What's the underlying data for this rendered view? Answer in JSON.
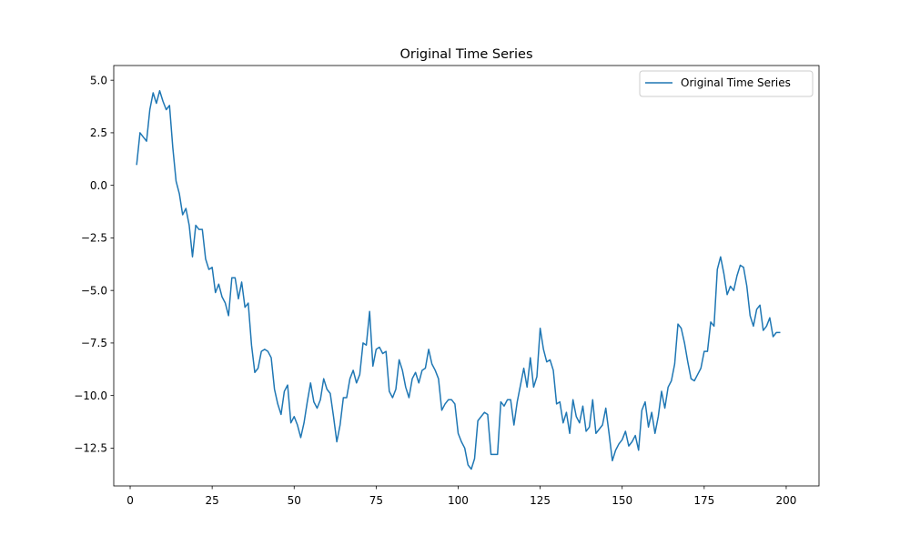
{
  "chart_data": {
    "type": "line",
    "title": "Original Time Series",
    "xlabel": "",
    "ylabel": "",
    "xlim": [
      -5,
      210
    ],
    "ylim": [
      -14.3,
      5.7
    ],
    "xticks": [
      0,
      25,
      50,
      75,
      100,
      125,
      150,
      175,
      200
    ],
    "yticks": [
      5.0,
      2.5,
      0.0,
      -2.5,
      -5.0,
      -7.5,
      -10.0,
      -12.5
    ],
    "xtick_labels": [
      "0",
      "25",
      "50",
      "75",
      "100",
      "125",
      "150",
      "175",
      "200"
    ],
    "ytick_labels": [
      "5.0",
      "2.5",
      "0.0",
      "−2.5",
      "−5.0",
      "−7.5",
      "−10.0",
      "−12.5"
    ],
    "grid": false,
    "legend_position": "upper right",
    "series": [
      {
        "name": "Original Time Series",
        "color": "#1f77b4",
        "x_start": 2,
        "x_step": 1,
        "values": [
          1.0,
          2.5,
          2.3,
          2.1,
          3.6,
          4.4,
          3.9,
          4.5,
          4.0,
          3.6,
          3.8,
          1.8,
          0.2,
          -0.4,
          -1.4,
          -1.1,
          -1.9,
          -3.4,
          -1.9,
          -2.1,
          -2.1,
          -3.5,
          -4.0,
          -3.9,
          -5.1,
          -4.7,
          -5.3,
          -5.6,
          -6.2,
          -4.4,
          -4.4,
          -5.4,
          -4.6,
          -5.8,
          -5.6,
          -7.6,
          -8.9,
          -8.7,
          -7.9,
          -7.8,
          -7.9,
          -8.2,
          -9.7,
          -10.4,
          -10.9,
          -9.8,
          -9.5,
          -11.3,
          -11.0,
          -11.4,
          -12.0,
          -11.3,
          -10.3,
          -9.4,
          -10.3,
          -10.6,
          -10.2,
          -9.2,
          -9.7,
          -9.9,
          -11.0,
          -12.2,
          -11.4,
          -10.1,
          -10.1,
          -9.2,
          -8.8,
          -9.4,
          -9.0,
          -7.5,
          -7.6,
          -6.0,
          -8.6,
          -7.8,
          -7.7,
          -8.0,
          -7.9,
          -9.8,
          -10.1,
          -9.7,
          -8.3,
          -8.8,
          -9.6,
          -10.1,
          -9.2,
          -8.9,
          -9.4,
          -8.8,
          -8.7,
          -7.8,
          -8.5,
          -8.8,
          -9.2,
          -10.7,
          -10.4,
          -10.2,
          -10.2,
          -10.4,
          -11.8,
          -12.2,
          -12.5,
          -13.3,
          -13.5,
          -13.0,
          -11.2,
          -11.0,
          -10.8,
          -10.9,
          -12.8,
          -12.8,
          -12.8,
          -10.3,
          -10.5,
          -10.2,
          -10.2,
          -11.4,
          -10.3,
          -9.5,
          -8.7,
          -9.6,
          -8.2,
          -9.6,
          -9.1,
          -6.8,
          -7.8,
          -8.4,
          -8.3,
          -8.8,
          -10.4,
          -10.3,
          -11.3,
          -10.8,
          -11.8,
          -10.2,
          -11.0,
          -11.3,
          -10.5,
          -11.7,
          -11.5,
          -10.2,
          -11.8,
          -11.6,
          -11.4,
          -10.6,
          -11.8,
          -13.1,
          -12.6,
          -12.3,
          -12.1,
          -11.7,
          -12.4,
          -12.2,
          -11.9,
          -12.6,
          -10.7,
          -10.3,
          -11.5,
          -10.8,
          -11.8,
          -11.0,
          -9.8,
          -10.6,
          -9.6,
          -9.3,
          -8.5,
          -6.6,
          -6.8,
          -7.5,
          -8.4,
          -9.2,
          -9.3,
          -9.0,
          -8.7,
          -7.9,
          -7.9,
          -6.5,
          -6.7,
          -4.0,
          -3.4,
          -4.2,
          -5.2,
          -4.8,
          -5.0,
          -4.3,
          -3.8,
          -3.9,
          -4.8,
          -6.2,
          -6.7,
          -5.9,
          -5.7,
          -6.9,
          -6.7,
          -6.3,
          -7.2,
          -7.0,
          -7.0
        ]
      }
    ]
  }
}
